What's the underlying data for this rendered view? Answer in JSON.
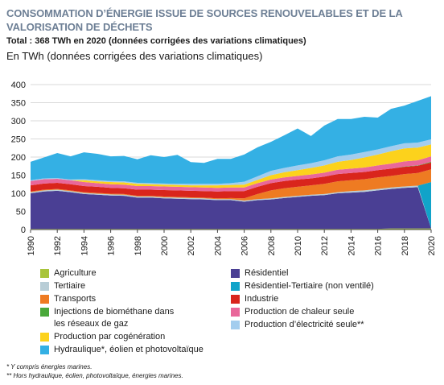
{
  "header": {
    "title": "CONSOMMATION D’ÉNERGIE ISSUE DE SOURCES RENOUVELABLES ET DE LA VALORISATION DE DÉCHETS",
    "subtitle": "Total : 368 TWh en 2020 (données corrigées des variations climatiques)",
    "unit_label": "En TWh (données corrigées des variations climatiques)"
  },
  "legend": [
    {
      "key": "agriculture",
      "label": "Agriculture",
      "color": "#a8c43a"
    },
    {
      "key": "residentiel",
      "label": "Résidentiel",
      "color": "#4a3f94"
    },
    {
      "key": "tertiaire",
      "label": "Tertiaire",
      "color": "#b8cdd6"
    },
    {
      "key": "res_tert",
      "label": "Résidentiel-Tertiaire (non ventilé)",
      "color": "#11a3c9"
    },
    {
      "key": "transports",
      "label": "Transports",
      "color": "#ee7b22"
    },
    {
      "key": "industrie",
      "label": "Industrie",
      "color": "#d9251c"
    },
    {
      "key": "biomethane",
      "label": "Injections de biométhane dans les réseaux de gaz",
      "color": "#4aa83a"
    },
    {
      "key": "chaleur",
      "label": "Production de chaleur seule",
      "color": "#e9679a"
    },
    {
      "key": "cogeneration",
      "label": "Production par cogénération",
      "color": "#fcd21c"
    },
    {
      "key": "electricite",
      "label": "Production d’électricité seule**",
      "color": "#a3cdee"
    },
    {
      "key": "hydraulique",
      "label": "Hydraulique*, éolien et photovoltaïque",
      "color": "#34b0e4"
    }
  ],
  "notes": {
    "note1": "* Y compris énergies marines.",
    "note2": "** Hors hydraulique, éolien, photovoltaïque, énergies marines."
  },
  "chart_data": {
    "type": "area",
    "stacked": true,
    "x": [
      1990,
      1991,
      1992,
      1993,
      1994,
      1995,
      1996,
      1997,
      1998,
      1999,
      2000,
      2001,
      2002,
      2003,
      2004,
      2005,
      2006,
      2007,
      2008,
      2009,
      2010,
      2011,
      2012,
      2013,
      2014,
      2015,
      2016,
      2017,
      2018,
      2019,
      2020
    ],
    "x_ticks": [
      1990,
      1992,
      1994,
      1996,
      1998,
      2000,
      2002,
      2004,
      2006,
      2008,
      2010,
      2012,
      2014,
      2016,
      2018,
      2020
    ],
    "ylim": [
      0,
      400
    ],
    "y_ticks": [
      0,
      50,
      100,
      150,
      200,
      250,
      300,
      350,
      400
    ],
    "grid": true,
    "series": [
      {
        "name": "Agriculture",
        "color": "#a8c43a",
        "values": [
          2,
          2,
          2,
          2,
          2,
          2,
          2,
          2,
          2,
          2,
          2,
          2,
          2,
          2,
          2,
          2,
          2,
          2,
          2,
          2,
          2,
          2,
          2,
          2,
          2,
          2,
          2,
          3,
          3,
          3,
          3
        ]
      },
      {
        "name": "Résidentiel",
        "color": "#4a3f94",
        "values": [
          98,
          103,
          105,
          101,
          96,
          94,
          92,
          91,
          86,
          86,
          84,
          83,
          82,
          81,
          79,
          79,
          75,
          79,
          81,
          85,
          88,
          91,
          93,
          98,
          100,
          102,
          106,
          109,
          112,
          114,
          0
        ]
      },
      {
        "name": "Tertiaire",
        "color": "#b8cdd6",
        "values": [
          3,
          3,
          3,
          3,
          3,
          3,
          3,
          3,
          3,
          3,
          3,
          3,
          3,
          3,
          3,
          3,
          3,
          3,
          3,
          3,
          3,
          3,
          3,
          3,
          4,
          4,
          4,
          4,
          4,
          4,
          0
        ]
      },
      {
        "name": "Résidentiel-Tertiaire (non ventilé)",
        "color": "#11a3c9",
        "values": [
          0,
          0,
          0,
          0,
          0,
          0,
          0,
          0,
          0,
          0,
          0,
          0,
          0,
          0,
          0,
          0,
          0,
          0,
          0,
          0,
          0,
          0,
          0,
          0,
          0,
          0,
          0,
          0,
          0,
          0,
          128
        ]
      },
      {
        "name": "Transports",
        "color": "#ee7b22",
        "values": [
          2,
          2,
          2,
          2,
          2,
          2,
          2,
          2,
          2,
          2,
          2,
          2,
          2,
          2,
          2,
          3,
          6,
          14,
          22,
          24,
          25,
          26,
          28,
          30,
          30,
          31,
          32,
          32,
          34,
          35,
          35
        ]
      },
      {
        "name": "Industrie",
        "color": "#d9251c",
        "values": [
          17,
          17,
          17,
          17,
          17,
          17,
          16,
          16,
          17,
          17,
          18,
          18,
          18,
          18,
          19,
          19,
          20,
          20,
          20,
          20,
          20,
          19,
          20,
          20,
          20,
          20,
          20,
          20,
          20,
          20,
          19
        ]
      },
      {
        "name": "Injections de biométhane dans les réseaux de gaz",
        "color": "#4aa83a",
        "values": [
          0,
          0,
          0,
          0,
          0,
          0,
          0,
          0,
          0,
          0,
          0,
          0,
          0,
          0,
          0,
          0,
          0,
          0,
          0,
          0,
          0,
          0,
          0,
          0,
          0,
          0,
          0,
          0,
          1,
          1,
          2
        ]
      },
      {
        "name": "Production de chaleur seule",
        "color": "#e9679a",
        "values": [
          12,
          12,
          11,
          11,
          11,
          10,
          10,
          10,
          10,
          10,
          10,
          10,
          10,
          10,
          10,
          10,
          10,
          10,
          10,
          10,
          10,
          11,
          11,
          12,
          12,
          12,
          13,
          14,
          14,
          14,
          15
        ]
      },
      {
        "name": "Production par cogénération",
        "color": "#fcd21c",
        "values": [
          0,
          0,
          0,
          0,
          5,
          5,
          6,
          6,
          6,
          5,
          5,
          5,
          5,
          6,
          7,
          7,
          8,
          9,
          12,
          14,
          16,
          18,
          20,
          22,
          24,
          28,
          30,
          34,
          36,
          35,
          33
        ]
      },
      {
        "name": "Production d’électricité seule**",
        "color": "#a3cdee",
        "values": [
          2,
          2,
          2,
          2,
          3,
          3,
          3,
          3,
          3,
          3,
          3,
          3,
          4,
          4,
          4,
          5,
          8,
          10,
          12,
          12,
          13,
          13,
          14,
          15,
          15,
          15,
          14,
          14,
          14,
          14,
          14
        ]
      },
      {
        "name": "Hydraulique*, éolien et photovoltaïque",
        "color": "#34b0e4",
        "values": [
          51,
          58,
          69,
          64,
          74,
          73,
          68,
          70,
          65,
          77,
          73,
          80,
          60,
          58,
          69,
          67,
          75,
          80,
          80,
          90,
          102,
          75,
          96,
          103,
          98,
          97,
          88,
          103,
          104,
          115,
          119
        ]
      }
    ]
  }
}
